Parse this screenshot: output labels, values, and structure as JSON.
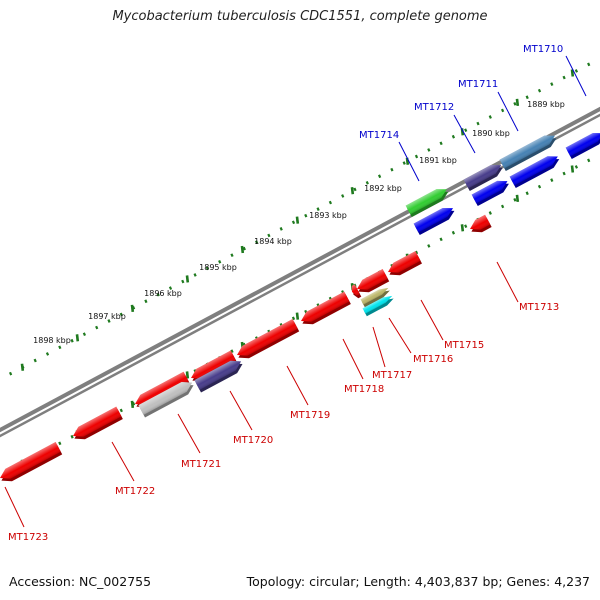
{
  "title": "Mycobacterium tuberculosis CDC1551, complete genome",
  "footer": {
    "accession": "Accession: NC_002755",
    "summary": "Topology: circular; Length: 4,403,837 bp; Genes: 4,237"
  },
  "colors": {
    "backbone": "#7f7f7f",
    "ruler_tick": "#1f7a1f",
    "label_forward": "#0000cc",
    "label_reverse": "#cc0000",
    "leader_forward": "#0000cc",
    "leader_reverse": "#cc0000"
  },
  "ruler": {
    "ticks": [
      {
        "label": "1889 kbp"
      },
      {
        "label": "1890 kbp"
      },
      {
        "label": "1891 kbp"
      },
      {
        "label": "1892 kbp"
      },
      {
        "label": "1893 kbp"
      },
      {
        "label": "1894 kbp"
      },
      {
        "label": "1895 kbp"
      },
      {
        "label": "1896 kbp"
      },
      {
        "label": "1897 kbp"
      },
      {
        "label": "1898 kbp"
      }
    ]
  },
  "genes": [
    {
      "name": "MT1710",
      "strand": "forward",
      "color": "#0000ee"
    },
    {
      "name": "MT1711",
      "strand": "forward",
      "color": "#4682b4"
    },
    {
      "name": "MT1712",
      "strand": "forward",
      "color": "#483d8b"
    },
    {
      "name": "MT1714",
      "strand": "forward",
      "color": "#32cd32"
    },
    {
      "name": "MT1713",
      "strand": "reverse",
      "color": "#ee0000"
    },
    {
      "name": "MT1715",
      "strand": "reverse",
      "color": "#ee0000"
    },
    {
      "name": "MT1716",
      "strand": "reverse",
      "color": "#00e5ee"
    },
    {
      "name": "MT1717",
      "strand": "reverse",
      "color": "#bdb76b"
    },
    {
      "name": "MT1718",
      "strand": "reverse",
      "color": "#ee0000"
    },
    {
      "name": "MT1719",
      "strand": "reverse",
      "color": "#ee0000"
    },
    {
      "name": "MT1720",
      "strand": "reverse",
      "color": "#483d8b"
    },
    {
      "name": "MT1721",
      "strand": "reverse",
      "color": "#c0c0c0"
    },
    {
      "name": "MT1722",
      "strand": "reverse",
      "color": "#ee0000"
    },
    {
      "name": "MT1723",
      "strand": "reverse",
      "color": "#ee0000"
    }
  ]
}
